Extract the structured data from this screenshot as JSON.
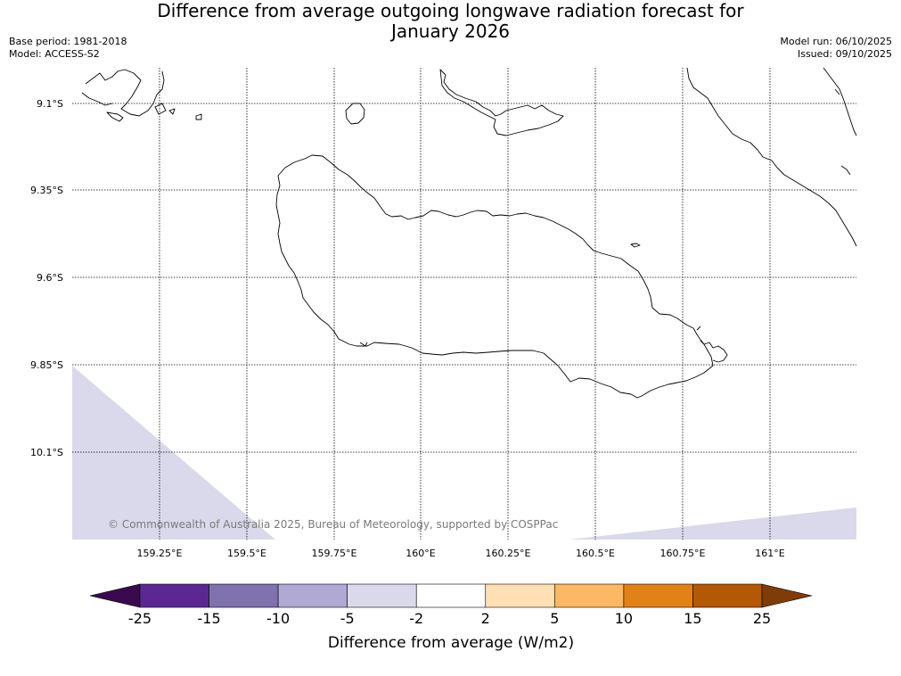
{
  "title_line1": "Difference from average outgoing longwave radiation forecast for",
  "title_line2": "January 2026",
  "meta_left": {
    "base_period": "Base period: 1981-2018",
    "model": "Model: ACCESS-S2"
  },
  "meta_right": {
    "model_run": "Model run: 06/10/2025",
    "issued": "Issued: 09/10/2025"
  },
  "lat_labels": [
    "9.1°S",
    "9.35°S",
    "9.6°S",
    "9.85°S",
    "10.1°S"
  ],
  "lon_labels": [
    "159.25°E",
    "159.5°E",
    "159.75°E",
    "160°E",
    "160.25°E",
    "160.5°E",
    "160.75°E",
    "161°E"
  ],
  "copyright": "© Commonwealth of Australia 2025, Bureau of Meteorology, supported by COSPPac",
  "colorbar": {
    "title": "Difference from average (W/m2)",
    "ticks": [
      "-25",
      "-15",
      "-10",
      "-5",
      "-2",
      "2",
      "5",
      "10",
      "15",
      "25"
    ],
    "colors": [
      "#5a2890",
      "#7f72ae",
      "#b0a9d3",
      "#d9d9eb",
      "#ffffff",
      "#ffe0b5",
      "#fdb865",
      "#e08218",
      "#b35806"
    ],
    "under_color": "#3b0a4e",
    "over_color": "#7f3b08"
  },
  "anomaly_fill_color": "#d9d9eb"
}
